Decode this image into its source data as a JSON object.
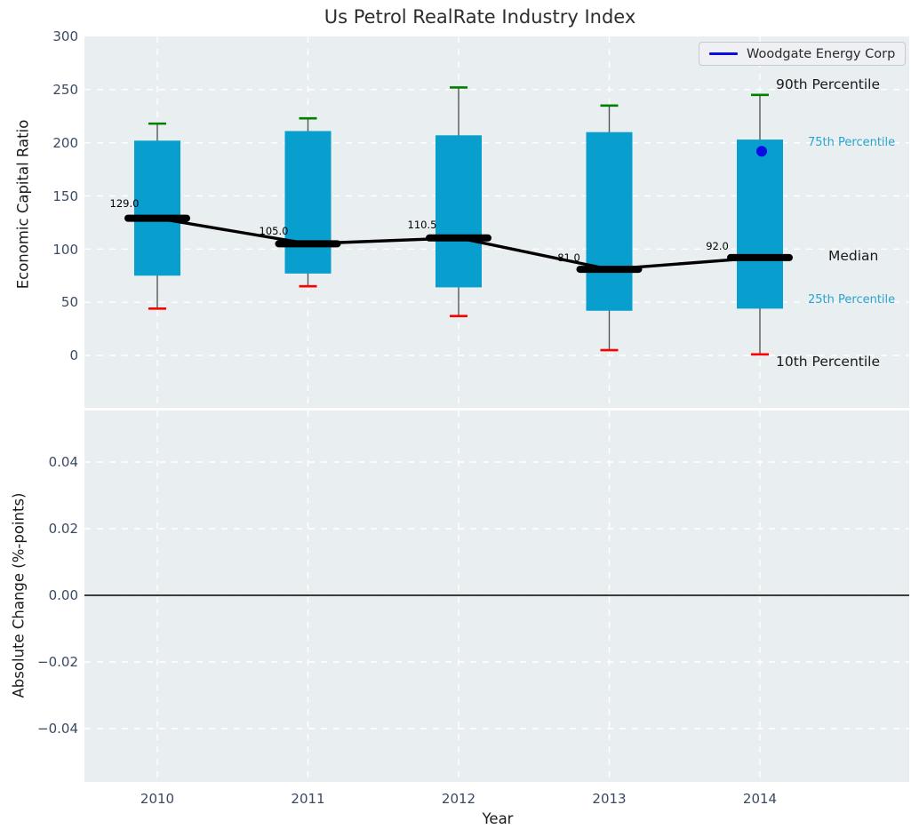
{
  "figure": {
    "title": "Us Petrol RealRate Industry Index",
    "xlabel": "Year"
  },
  "legend": {
    "label": "Woodgate Energy Corp"
  },
  "colors": {
    "box_fill": "#089ECD",
    "whisker": "#555555",
    "cap_90": "#008000",
    "cap_10": "#FF0000",
    "median_line": "#000000",
    "company_marker": "#0B0BE8",
    "legend_line": "#0B0BE8",
    "axes_bg": "#E9EEF0",
    "grid": "#FFFFFF",
    "zero_line": "#000000",
    "tick_label": "#3B4A63",
    "cyan_label": "#2BA3CE",
    "black_label": "#1A1A1A"
  },
  "top_axes": {
    "ylabel": "Economic Capital Ratio",
    "yticks": [
      "300",
      "250",
      "200",
      "150",
      "100",
      "50",
      "0"
    ],
    "annotations": {
      "p90": "90th Percentile",
      "p75": "75th Percentile",
      "median": "Median",
      "p25": "25th Percentile",
      "p10": "10th Percentile"
    }
  },
  "bottom_axes": {
    "ylabel": "Absolute Change (%-points)",
    "yticks": [
      "0.04",
      "0.02",
      "0.00",
      "−0.02",
      "−0.04"
    ]
  },
  "chart_data": [
    {
      "type": "box",
      "title": "Us Petrol RealRate Industry Index",
      "xlabel": "Year",
      "ylabel": "Economic Capital Ratio",
      "categories": [
        "2010",
        "2011",
        "2012",
        "2013",
        "2014"
      ],
      "ylim": [
        -50,
        300
      ],
      "yticks": [
        0,
        50,
        100,
        150,
        200,
        250,
        300
      ],
      "grid": true,
      "legend_position": "upper right",
      "series": [
        {
          "name": "90th Percentile",
          "role": "whisker_high",
          "values": [
            218,
            223,
            252,
            235,
            245
          ]
        },
        {
          "name": "75th Percentile",
          "role": "box_top",
          "values": [
            202,
            211,
            207,
            210,
            203
          ]
        },
        {
          "name": "Median",
          "role": "median",
          "values": [
            129.0,
            105.0,
            110.5,
            81.0,
            92.0
          ]
        },
        {
          "name": "25th Percentile",
          "role": "box_bottom",
          "values": [
            75,
            77,
            64,
            42,
            44
          ]
        },
        {
          "name": "10th Percentile",
          "role": "whisker_low",
          "values": [
            44,
            65,
            37,
            5,
            1
          ]
        },
        {
          "name": "Woodgate Energy Corp",
          "role": "scatter",
          "values": [
            null,
            null,
            null,
            null,
            192
          ]
        }
      ],
      "median_labels": [
        "129.0",
        "105.0",
        "110.5",
        "81.0",
        "92.0"
      ]
    },
    {
      "type": "line",
      "ylabel": "Absolute Change (%-points)",
      "x": [
        "2010",
        "2011",
        "2012",
        "2013",
        "2014"
      ],
      "ylim": [
        -0.056,
        0.056
      ],
      "yticks": [
        0.04,
        0.02,
        0.0,
        -0.02,
        -0.04
      ],
      "zero_line": 0.0,
      "grid": true,
      "series": []
    }
  ]
}
